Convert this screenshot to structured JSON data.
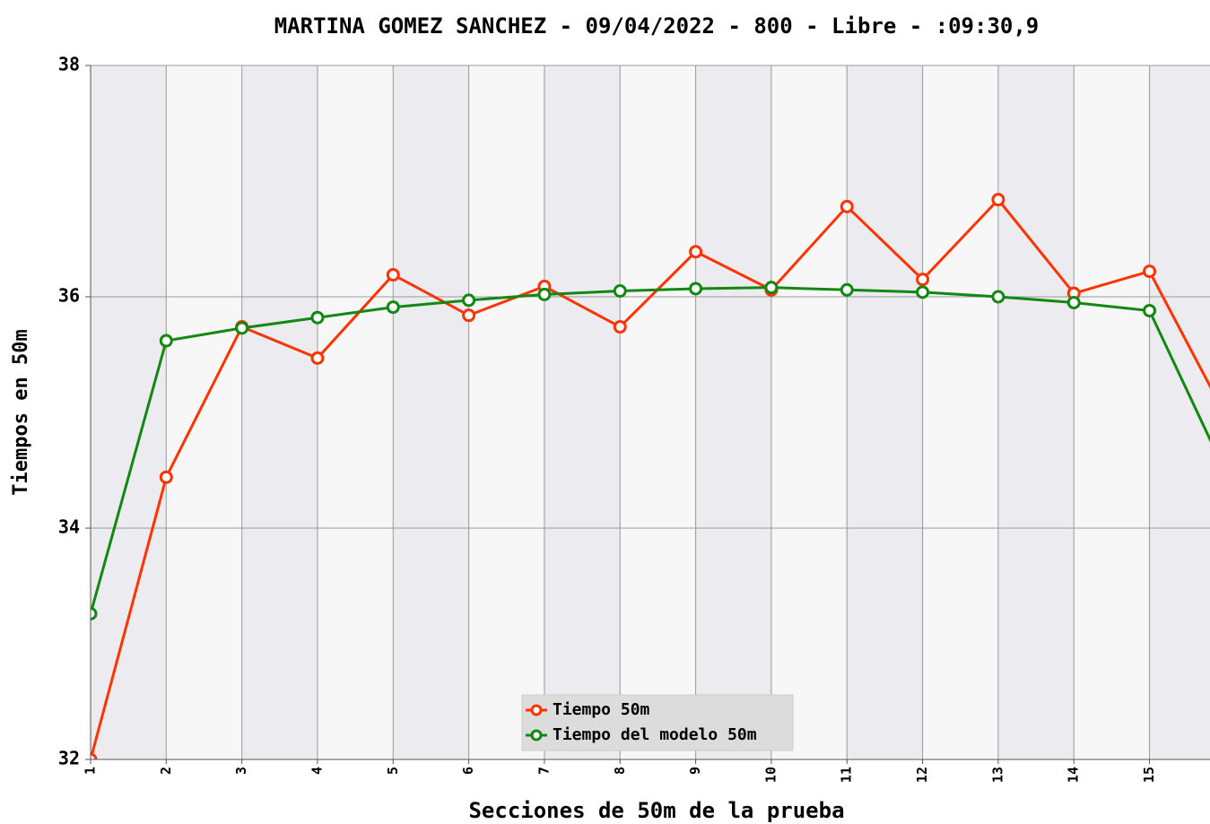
{
  "chart_data": {
    "type": "line",
    "title": "MARTINA GOMEZ SANCHEZ - 09/04/2022 - 800 - Libre - :09:30,9",
    "x_label": "Secciones de 50m de la prueba",
    "y_label": "Tiempos en 50m",
    "x": [
      1,
      2,
      3,
      4,
      5,
      6,
      7,
      8,
      9,
      10,
      11,
      12,
      13,
      14,
      15,
      16
    ],
    "series": [
      {
        "name": "Tiempo 50m",
        "color": "#ff3300",
        "values": [
          32.0,
          34.44,
          35.74,
          35.47,
          36.19,
          35.84,
          36.09,
          35.74,
          36.39,
          36.06,
          36.78,
          36.15,
          36.84,
          36.03,
          36.22,
          34.98
        ]
      },
      {
        "name": "Tiempo del modelo 50m",
        "color": "#118811",
        "values": [
          33.26,
          35.62,
          35.73,
          35.82,
          35.91,
          35.97,
          36.02,
          36.05,
          36.07,
          36.08,
          36.06,
          36.04,
          36.0,
          35.95,
          35.88,
          34.49
        ]
      }
    ],
    "xlim": [
      1,
      15.8
    ],
    "xticks": [
      1,
      2,
      3,
      4,
      5,
      6,
      7,
      8,
      9,
      10,
      11,
      12,
      13,
      14,
      15
    ],
    "ylim": [
      32,
      38
    ],
    "yticks": [
      32,
      34,
      36,
      38
    ],
    "grid": true,
    "legend": "bottom"
  }
}
